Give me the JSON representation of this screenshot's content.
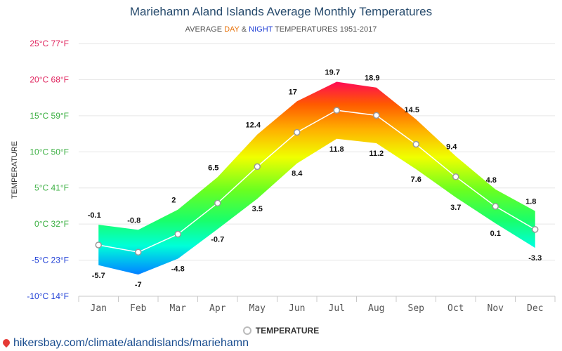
{
  "title": "Mariehamn Aland Islands Average Monthly Temperatures",
  "subtitle": {
    "prefix": "AVERAGE ",
    "day": "DAY",
    "amp": " & ",
    "night": "NIGHT",
    "suffix": " TEMPERATURES 1951-2017"
  },
  "colors": {
    "title": "#274b6d",
    "day": "#e8730c",
    "night": "#1f3fd6",
    "axis_warm": "#e0245e",
    "axis_mild": "#3cb043",
    "axis_cold": "#1f3fd6"
  },
  "legend": {
    "label": "TEMPERATURE"
  },
  "footer": {
    "text": "hikersbay.com/climate/alandislands/mariehamn",
    "icon": "map-pin-icon"
  },
  "chart_data": {
    "type": "area",
    "title": "Mariehamn Aland Islands Average Monthly Temperatures",
    "subtitle": "AVERAGE DAY & NIGHT TEMPERATURES 1951-2017",
    "ylabel": "TEMPERATURE",
    "xlabel": "",
    "ylim": [
      -10,
      25
    ],
    "yticks": [
      25,
      20,
      15,
      10,
      5,
      0,
      -5,
      -10
    ],
    "ytick_labels": [
      "25°C 77°F",
      "20°C 68°F",
      "15°C 59°F",
      "10°C 50°F",
      "5°C 41°F",
      "0°C 32°F",
      "-5°C 23°F",
      "-10°C 14°F"
    ],
    "categories": [
      "Jan",
      "Feb",
      "Mar",
      "Apr",
      "May",
      "Jun",
      "Jul",
      "Aug",
      "Sep",
      "Oct",
      "Nov",
      "Dec"
    ],
    "series": [
      {
        "name": "DAY",
        "values": [
          -0.1,
          -0.8,
          2,
          6.5,
          12.4,
          17,
          19.7,
          18.9,
          14.5,
          9.4,
          4.8,
          1.8
        ]
      },
      {
        "name": "NIGHT",
        "values": [
          -5.7,
          -7,
          -4.8,
          -0.7,
          3.5,
          8.4,
          11.8,
          11.2,
          7.6,
          3.7,
          0.1,
          -3.3
        ]
      },
      {
        "name": "TEMPERATURE",
        "values": [
          -2.9,
          -3.9,
          -1.4,
          2.9,
          7.95,
          12.7,
          15.75,
          15.05,
          11.05,
          6.55,
          2.45,
          -0.75
        ]
      }
    ],
    "grid": true,
    "legend_position": "bottom-center"
  }
}
